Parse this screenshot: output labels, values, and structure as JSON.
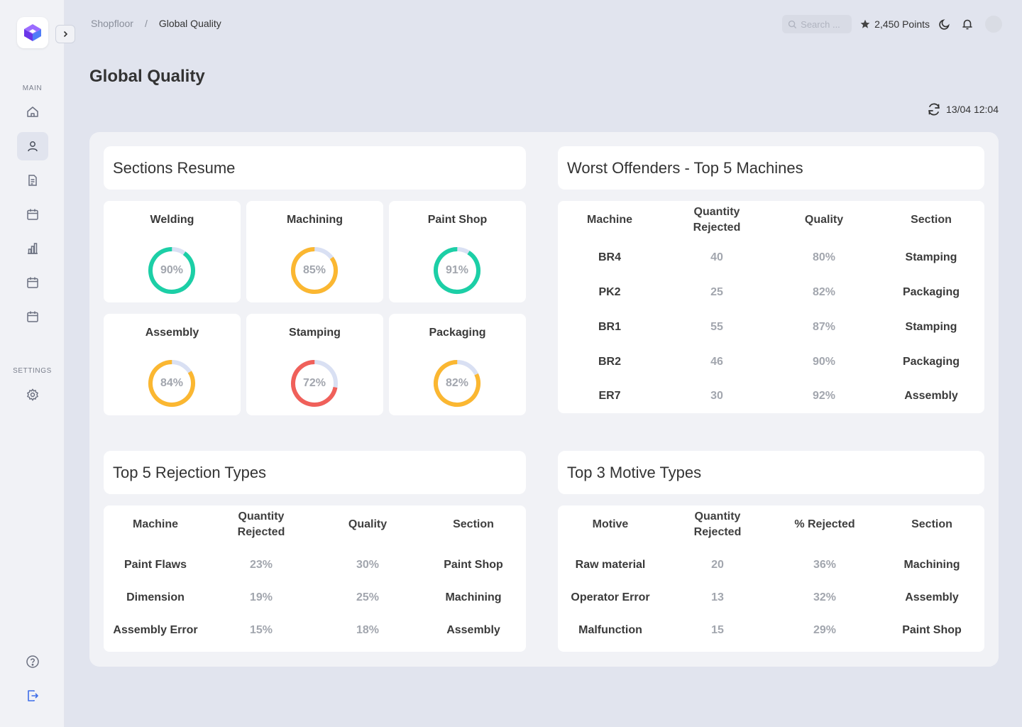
{
  "sidebar": {
    "main_label": "MAIN",
    "settings_label": "SETTINGS",
    "items": [
      {
        "name": "home-icon"
      },
      {
        "name": "user-icon"
      },
      {
        "name": "document-icon"
      },
      {
        "name": "calendar-icon"
      },
      {
        "name": "bar-chart-icon"
      },
      {
        "name": "calendar-icon"
      },
      {
        "name": "calendar-icon"
      }
    ]
  },
  "header": {
    "breadcrumb_root": "Shopfloor",
    "breadcrumb_sep": "/",
    "breadcrumb_current": "Global Quality",
    "search_placeholder": "Search ...",
    "points": "2,450 Points"
  },
  "page": {
    "title": "Global Quality",
    "last_update": "13/04 12:04"
  },
  "colors": {
    "green": "#1ccfa6",
    "amber": "#fbb731",
    "red": "#f0605a",
    "track": "#d9e0f3",
    "accent": "#7b4ff5"
  },
  "sections_resume": {
    "title": "Sections Resume",
    "items": [
      {
        "name": "Welding",
        "value": 90,
        "label": "90%",
        "color": "#1ccfa6"
      },
      {
        "name": "Machining",
        "value": 85,
        "label": "85%",
        "color": "#fbb731"
      },
      {
        "name": "Paint Shop",
        "value": 91,
        "label": "91%",
        "color": "#1ccfa6"
      },
      {
        "name": "Assembly",
        "value": 84,
        "label": "84%",
        "color": "#fbb731"
      },
      {
        "name": "Stamping",
        "value": 72,
        "label": "72%",
        "color": "#f0605a"
      },
      {
        "name": "Packaging",
        "value": 82,
        "label": "82%",
        "color": "#fbb731"
      }
    ]
  },
  "worst_offenders": {
    "title": "Worst Offenders - Top 5 Machines",
    "columns": [
      "Machine",
      "Quantity\nRejected",
      "Quality",
      "Section"
    ],
    "rows": [
      [
        "BR4",
        "40",
        "80%",
        "Stamping"
      ],
      [
        "PK2",
        "25",
        "82%",
        "Packaging"
      ],
      [
        "BR1",
        "55",
        "87%",
        "Stamping"
      ],
      [
        "BR2",
        "46",
        "90%",
        "Packaging"
      ],
      [
        "ER7",
        "30",
        "92%",
        "Assembly"
      ]
    ]
  },
  "rejection_types": {
    "title": "Top 5 Rejection Types",
    "columns": [
      "Machine",
      "Quantity\nRejected",
      "Quality",
      "Section"
    ],
    "rows": [
      [
        "Paint Flaws",
        "23%",
        "30%",
        "Paint Shop"
      ],
      [
        "Dimension",
        "19%",
        "25%",
        "Machining"
      ],
      [
        "Assembly Error",
        "15%",
        "18%",
        "Assembly"
      ]
    ]
  },
  "motive_types": {
    "title": "Top 3 Motive Types",
    "columns": [
      "Motive",
      "Quantity\nRejected",
      "% Rejected",
      "Section"
    ],
    "rows": [
      [
        "Raw material",
        "20",
        "36%",
        "Machining"
      ],
      [
        "Operator Error",
        "13",
        "32%",
        "Assembly"
      ],
      [
        "Malfunction",
        "15",
        "29%",
        "Paint Shop"
      ]
    ]
  }
}
